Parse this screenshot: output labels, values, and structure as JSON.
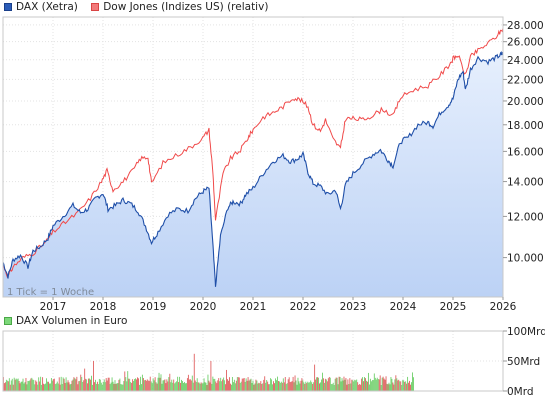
{
  "chart_data": [
    {
      "type": "line",
      "legend_position": "top-left",
      "grid": true,
      "y_scale": "log",
      "ylim": [
        8400,
        29000
      ],
      "xlim": [
        2016.0,
        2026.0
      ],
      "y_ticks": [
        10000,
        12000,
        14000,
        16000,
        18000,
        20000,
        22000,
        24000,
        26000,
        28000
      ],
      "y_tick_labels": [
        "10.000",
        "12.000",
        "14.000",
        "16.000",
        "18.000",
        "20.000",
        "22.000",
        "24.000",
        "26.000",
        "28.000"
      ],
      "x_ticks": [
        2017,
        2018,
        2019,
        2020,
        2021,
        2022,
        2023,
        2024,
        2025,
        2026
      ],
      "x_tick_labels": [
        "2017",
        "2018",
        "2019",
        "2020",
        "2021",
        "2022",
        "2023",
        "2024",
        "2025",
        "2026"
      ],
      "note": "1 Tick = 1 Woche",
      "series": [
        {
          "name": "DAX (Xetra)",
          "color": "#1f4fa8",
          "fill": "#d3e2fb",
          "x": [
            2016.0,
            2016.1,
            2016.2,
            2016.35,
            2016.5,
            2016.6,
            2016.75,
            2016.9,
            2017.0,
            2017.2,
            2017.4,
            2017.55,
            2017.7,
            2017.85,
            2018.0,
            2018.1,
            2018.25,
            2018.4,
            2018.55,
            2018.7,
            2018.85,
            2018.97,
            2019.1,
            2019.3,
            2019.5,
            2019.7,
            2019.85,
            2020.0,
            2020.12,
            2020.2,
            2020.25,
            2020.35,
            2020.5,
            2020.6,
            2020.75,
            2020.85,
            2021.0,
            2021.2,
            2021.4,
            2021.6,
            2021.75,
            2021.9,
            2022.0,
            2022.1,
            2022.2,
            2022.35,
            2022.5,
            2022.65,
            2022.75,
            2022.85,
            2023.0,
            2023.2,
            2023.4,
            2023.55,
            2023.7,
            2023.8,
            2023.95,
            2024.1,
            2024.3,
            2024.5,
            2024.6,
            2024.75,
            2024.9,
            2025.0,
            2025.1,
            2025.2,
            2025.25,
            2025.35,
            2025.5,
            2025.7,
            2025.85,
            2025.95,
            2026.0
          ],
          "y": [
            9800,
            9200,
            9900,
            10100,
            9600,
            10300,
            10500,
            10900,
            11500,
            12000,
            12600,
            12200,
            12400,
            13000,
            13300,
            12400,
            12600,
            12900,
            12700,
            12300,
            11500,
            10700,
            11200,
            12100,
            12400,
            12300,
            13000,
            13400,
            13600,
            10500,
            8800,
            11000,
            12500,
            12800,
            12700,
            13200,
            13600,
            14500,
            15300,
            15700,
            15300,
            15500,
            15800,
            14600,
            13900,
            13700,
            13200,
            13500,
            12400,
            13800,
            14500,
            15200,
            15800,
            16100,
            15400,
            15000,
            16700,
            17000,
            18000,
            18200,
            17900,
            19000,
            19600,
            20200,
            22000,
            22800,
            21000,
            23000,
            24200,
            23800,
            24200,
            24500,
            24700
          ]
        },
        {
          "name": "Dow Jones (Indizes US) (relativ)",
          "color": "#f04a4a",
          "x": [
            2016.0,
            2016.1,
            2016.2,
            2016.4,
            2016.6,
            2016.85,
            2017.0,
            2017.25,
            2017.5,
            2017.75,
            2017.97,
            2018.08,
            2018.2,
            2018.4,
            2018.6,
            2018.75,
            2018.9,
            2018.97,
            2019.2,
            2019.5,
            2019.75,
            2020.0,
            2020.12,
            2020.2,
            2020.25,
            2020.4,
            2020.55,
            2020.75,
            2020.9,
            2021.0,
            2021.2,
            2021.4,
            2021.6,
            2021.8,
            2021.95,
            2022.1,
            2022.2,
            2022.35,
            2022.45,
            2022.6,
            2022.75,
            2022.85,
            2023.0,
            2023.2,
            2023.4,
            2023.6,
            2023.8,
            2023.95,
            2024.2,
            2024.5,
            2024.7,
            2024.9,
            2025.0,
            2025.1,
            2025.25,
            2025.35,
            2025.5,
            2025.7,
            2025.9,
            2026.0
          ],
          "y": [
            9700,
            9200,
            9600,
            10000,
            10200,
            10700,
            11200,
            11700,
            12200,
            13000,
            14000,
            14700,
            13500,
            14000,
            14700,
            15500,
            15600,
            13900,
            15200,
            15800,
            16300,
            17000,
            17600,
            14500,
            11800,
            14500,
            15500,
            16100,
            17000,
            17600,
            18600,
            19000,
            19500,
            20300,
            20100,
            19500,
            18000,
            17500,
            18400,
            16900,
            16200,
            18500,
            18500,
            18400,
            18800,
            19300,
            18700,
            20300,
            21000,
            21400,
            22200,
            23300,
            24100,
            24500,
            22400,
            24300,
            25000,
            25800,
            26800,
            27600
          ]
        }
      ]
    },
    {
      "type": "bar",
      "legend_position": "top-left",
      "grid": true,
      "ylim": [
        0,
        100
      ],
      "y_ticks": [
        0,
        50,
        100
      ],
      "y_tick_labels": [
        "0Mrd",
        "50Mrd",
        "100Mrd"
      ],
      "series": [
        {
          "name": "DAX Volumen in Euro",
          "colors": [
            "#6fcf6a",
            "#e06060"
          ],
          "weeks": 420
        }
      ]
    }
  ]
}
